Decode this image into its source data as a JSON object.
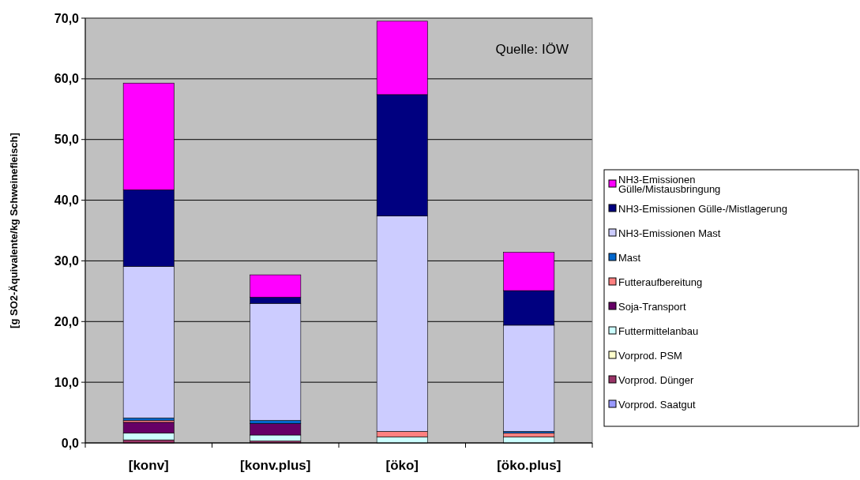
{
  "chart_data": {
    "type": "bar",
    "stacked": true,
    "ylabel": "[g SO2-Äquivalente/kg Schweinefleisch]",
    "annotations": [
      "Quelle: IÖW"
    ],
    "categories": [
      "[konv]",
      "[konv.plus]",
      "[öko]",
      "[öko.plus]"
    ],
    "series": [
      {
        "name": "Vorprod. Saatgut",
        "color": "#9999ff",
        "values": [
          0,
          0,
          0,
          0
        ]
      },
      {
        "name": "Vorprod. Dünger",
        "color": "#993366",
        "values": [
          0.5,
          0.3,
          null,
          null
        ]
      },
      {
        "name": "Vorprod. PSM",
        "color": "#ffffcc",
        "values": [
          0,
          0,
          0,
          0
        ]
      },
      {
        "name": "Futtermittelanbau",
        "color": "#ccffff",
        "values": [
          1.1,
          1.0,
          1.0,
          1.0
        ]
      },
      {
        "name": "Soja-Transport",
        "color": "#660066",
        "values": [
          1.8,
          1.9,
          0,
          0
        ]
      },
      {
        "name": "Futteraufbereitung",
        "color": "#ff8080",
        "values": [
          0.3,
          0,
          0.9,
          0.6
        ]
      },
      {
        "name": "Mast",
        "color": "#0066cc",
        "values": [
          0.4,
          0.5,
          0,
          0.3
        ]
      },
      {
        "name": "NH3-Emissionen Mast",
        "color": "#ccccff",
        "values": [
          25.0,
          19.3,
          35.5,
          17.5
        ]
      },
      {
        "name": "NH3-Emissionen Gülle-/Mistlagerung",
        "color": "#000080",
        "values": [
          12.6,
          1.0,
          20.0,
          5.7
        ]
      },
      {
        "name": "NH3-Emissionen Gülle/Mistausbringung",
        "color": "#ff00ff",
        "values": [
          17.6,
          3.7,
          12.1,
          6.3
        ]
      }
    ],
    "ylim": [
      0,
      70
    ],
    "yticks": [
      {
        "value": 0,
        "label": "0,0"
      },
      {
        "value": 10,
        "label": "10,0"
      },
      {
        "value": 20,
        "label": "20,0"
      },
      {
        "value": 30,
        "label": "30,0"
      },
      {
        "value": 40,
        "label": "40,0"
      },
      {
        "value": 50,
        "label": "50,0"
      },
      {
        "value": 60,
        "label": "60,0"
      },
      {
        "value": 70,
        "label": "70,0"
      }
    ],
    "grid": "y",
    "legend": "right"
  }
}
